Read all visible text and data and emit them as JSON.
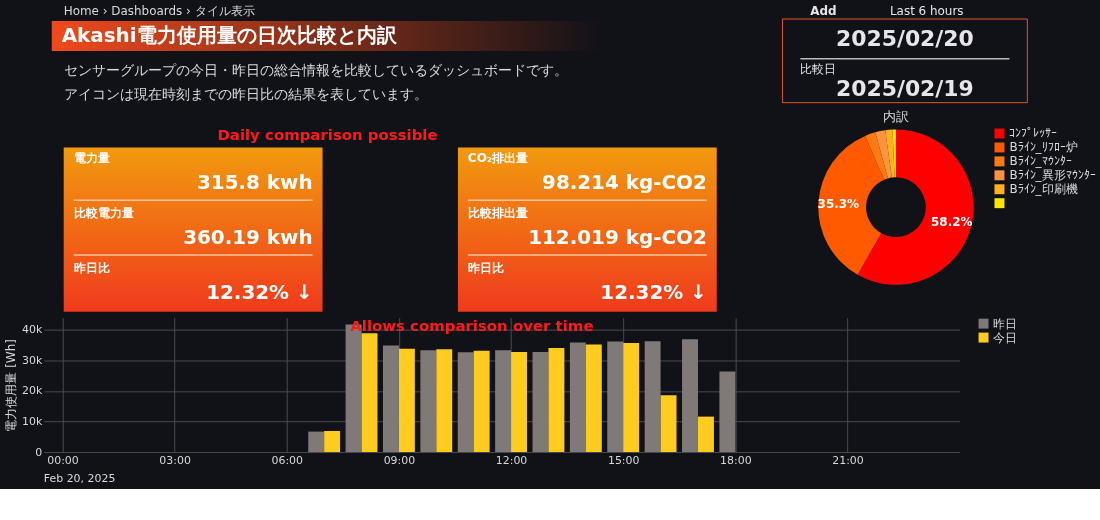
{
  "chart_data": [
    {
      "type": "other",
      "title": "Akashi電力使用量の日次比較と内訳",
      "annotations": [
        "Home › Dashboards › タイル表示",
        "センサーグループの今日・昨日の総合情報を比較しているダッシュボードです。",
        "アイコンは現在時刻までの昨日比の結果を表しています。"
      ]
    },
    {
      "type": "other",
      "annotations": [
        "Add",
        "Last 6 hours",
        "2025/02/20",
        "比較日",
        "2025/02/19"
      ]
    },
    {
      "type": "other",
      "annotations": [
        "電力量",
        "315.8 kwh",
        "比較電力量",
        "360.19 kwh",
        "昨日比",
        "12.32% ↓",
        "Daily comparison possible"
      ]
    },
    {
      "type": "other",
      "annotations": [
        "CO₂排出量",
        "98.214 kg-CO2",
        "比較排出量",
        "112.019 kg-CO2",
        "昨日比",
        "12.32% ↓"
      ]
    },
    {
      "type": "donut",
      "title": "内訳",
      "categories": [
        "ｺﾝﾌﾟﾚｯｻｰ",
        "Bﾗｲﾝ_ﾘﾌﾛｰ炉",
        "Bﾗｲﾝ_ﾏｳﾝﾀｰ",
        "Bﾗｲﾝ_異形ﾏｳﾝﾀｰ",
        "Bﾗｲﾝ_印刷機",
        null
      ],
      "values": [
        58.2,
        35.3,
        2.2,
        2.1,
        1.5,
        0.7
      ],
      "colors": [
        "#ff0000",
        "#ff5a00",
        "#ff7a10",
        "#ff9440",
        "#ffb020",
        "#ffe600"
      ],
      "value_labels": [
        "58.2%",
        "35.3%",
        null,
        null,
        null,
        null
      ],
      "legend": "right"
    },
    {
      "type": "bar",
      "ylabel": "電力使用量 [Wh]",
      "x": [
        0,
        1,
        2,
        3,
        4,
        5,
        6,
        7,
        8,
        9,
        10,
        11,
        12,
        13,
        14,
        15,
        16,
        17,
        18,
        19,
        20,
        21,
        22,
        23
      ],
      "series": [
        {
          "name": "昨日",
          "color": "#7f7a78",
          "values": [
            0,
            0,
            0,
            0,
            0,
            0,
            0,
            6700,
            41800,
            34900,
            33300,
            32700,
            33300,
            32800,
            35900,
            36200,
            36300,
            36900,
            26400,
            0,
            0,
            0,
            0,
            0
          ]
        },
        {
          "name": "今日",
          "color": "#fecb1f",
          "values": [
            0,
            0,
            0,
            0,
            0,
            0,
            0,
            6900,
            38900,
            33800,
            33700,
            33200,
            32800,
            34100,
            35200,
            35700,
            18600,
            11600,
            null,
            null,
            null,
            null,
            null,
            null
          ]
        }
      ],
      "xlim": [
        -0.5,
        24
      ],
      "xticks": [
        {
          "value": 0,
          "label": "00:00"
        },
        {
          "value": 3,
          "label": "03:00"
        },
        {
          "value": 6,
          "label": "06:00"
        },
        {
          "value": 9,
          "label": "09:00"
        },
        {
          "value": 12,
          "label": "12:00"
        },
        {
          "value": 15,
          "label": "15:00"
        },
        {
          "value": 18,
          "label": "18:00"
        },
        {
          "value": 21,
          "label": "21:00"
        }
      ],
      "ylim": [
        0,
        44000
      ],
      "yticks": [
        0,
        {
          "value": 10000,
          "label": "10k"
        },
        {
          "value": 20000,
          "label": "20k"
        },
        {
          "value": 30000,
          "label": "30k"
        },
        {
          "value": 40000,
          "label": "40k"
        }
      ],
      "grid": true,
      "legend": "top right",
      "annotations": [
        "Allows comparison over time",
        "Feb 20, 2025"
      ]
    }
  ]
}
